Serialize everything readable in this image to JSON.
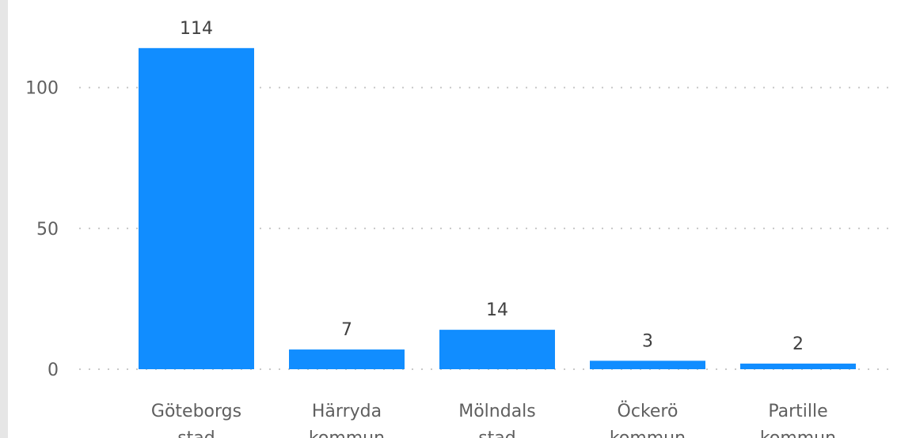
{
  "colors": {
    "bar": "#118DFF"
  },
  "chart_data": {
    "type": "bar",
    "categories": [
      [
        "Göteborgs",
        "stad"
      ],
      [
        "Härryda",
        "kommun"
      ],
      [
        "Mölndals",
        "stad"
      ],
      [
        "Öckerö",
        "kommun"
      ],
      [
        "Partille",
        "kommun"
      ]
    ],
    "values": [
      114,
      7,
      14,
      3,
      2
    ],
    "data_labels": [
      "114",
      "7",
      "14",
      "3",
      "2"
    ],
    "y_ticks": [
      0,
      50,
      100
    ],
    "ylim": [
      0,
      120
    ],
    "grid": "horizontal dotted",
    "legend": "none"
  }
}
